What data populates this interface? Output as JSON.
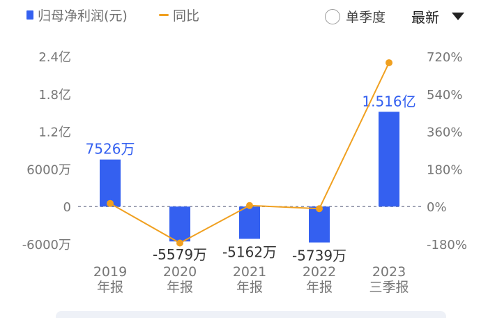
{
  "legend": {
    "bar_label": "归母净利润(元)",
    "line_label": "同比"
  },
  "controls": {
    "radio_label": "单季度",
    "sort_label": "最新"
  },
  "colors": {
    "bar": "#3460f0",
    "line": "#f0a020",
    "axis_text": "#777777",
    "bar_label": "#3460f0",
    "neg_label": "#333333",
    "zero_line": "#8a8fa3"
  },
  "chart_data": {
    "type": "bar",
    "title": "",
    "categories": [
      {
        "line1": "2019",
        "line2": "年报"
      },
      {
        "line1": "2020",
        "line2": "年报"
      },
      {
        "line1": "2021",
        "line2": "年报"
      },
      {
        "line1": "2022",
        "line2": "年报"
      },
      {
        "line1": "2023",
        "line2": "三季报"
      }
    ],
    "series": [
      {
        "name": "归母净利润(元)",
        "type": "bar",
        "values": [
          75260000,
          -55790000,
          -51620000,
          -57390000,
          151600000
        ],
        "labels": [
          "7526万",
          "-5579万",
          "-5162万",
          "-5739万",
          "1.516亿"
        ]
      },
      {
        "name": "同比",
        "type": "line",
        "values": [
          15,
          -175,
          5,
          -10,
          690
        ]
      }
    ],
    "left_axis": {
      "ylim": [
        -60000000,
        240000000
      ],
      "ticks": [
        240000000,
        180000000,
        120000000,
        60000000,
        0,
        -60000000
      ],
      "tick_labels": [
        "2.4亿",
        "1.8亿",
        "1.2亿",
        "6000万",
        "0",
        "-6000万"
      ]
    },
    "right_axis": {
      "ylim": [
        -180,
        720
      ],
      "ticks": [
        720,
        540,
        360,
        180,
        0,
        -180
      ],
      "tick_labels": [
        "720%",
        "540%",
        "360%",
        "180%",
        "0%",
        "-180%"
      ]
    },
    "grid": false
  }
}
